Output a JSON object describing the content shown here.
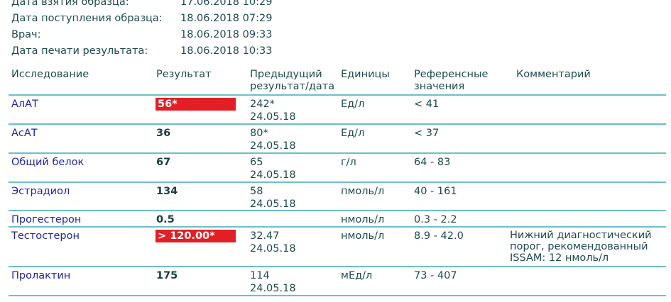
{
  "info": [
    {
      "label": "Дата взятия образца:",
      "value": "17.06.2018 10:29"
    },
    {
      "label": "Дата поступления образца:",
      "value": "18.06.2018 07:29"
    },
    {
      "label": "Врач:",
      "value": "18.06.2018 09:33"
    },
    {
      "label": "Дата печати результата:",
      "value": "18.06.2018 10:33"
    }
  ],
  "columns": {
    "test": "Исследование",
    "result": "Результат",
    "prev1": "Предыдущий",
    "prev2": "результат/дата",
    "units": "Единицы",
    "ref1": "Референсные",
    "ref2": "значения",
    "comment": "Комментарий"
  },
  "rows": [
    {
      "name": "АлАТ",
      "result": "56*",
      "flag": true,
      "prev": "242*",
      "prev_date": "24.05.18",
      "units": "Ед/л",
      "ref": "< 41",
      "comment": [
        "",
        "",
        ""
      ]
    },
    {
      "name": "АсАТ",
      "result": "36",
      "flag": false,
      "prev": "80*",
      "prev_date": "24.05.18",
      "units": "Ед/л",
      "ref": "< 37",
      "comment": [
        "",
        "",
        ""
      ]
    },
    {
      "name": "Общий белок",
      "result": "67",
      "flag": false,
      "prev": "65",
      "prev_date": "24.05.18",
      "units": "г/л",
      "ref": "64 - 83",
      "comment": [
        "",
        "",
        ""
      ]
    },
    {
      "name": "Эстрадиол",
      "result": "134",
      "flag": false,
      "prev": "58",
      "prev_date": "24.05.18",
      "units": "пмоль/л",
      "ref": "40 - 161",
      "comment": [
        "",
        "",
        ""
      ]
    },
    {
      "name": "Прогестерон",
      "result": "0.5",
      "flag": false,
      "prev": "",
      "prev_date": "",
      "units": "нмоль/л",
      "ref": "0.3 - 2.2",
      "comment": [
        "",
        "",
        ""
      ]
    },
    {
      "name": "Тестостерон",
      "result": "> 120.00*",
      "flag": true,
      "prev": "32.47",
      "prev_date": "24.05.18",
      "units": "нмоль/л",
      "ref": "8.9 - 42.0",
      "comment": [
        "Нижний диагностический",
        "порог, рекомендованный",
        "ISSAM: 12 нмоль/л"
      ]
    },
    {
      "name": "Пролактин",
      "result": "175",
      "flag": false,
      "prev": "114",
      "prev_date": "24.05.18",
      "units": "мЕд/л",
      "ref": "73 - 407",
      "comment": [
        "",
        "",
        ""
      ]
    }
  ],
  "colors": {
    "flag": "#e31e24",
    "line": "#6cbfcb",
    "link": "#2424b0"
  }
}
